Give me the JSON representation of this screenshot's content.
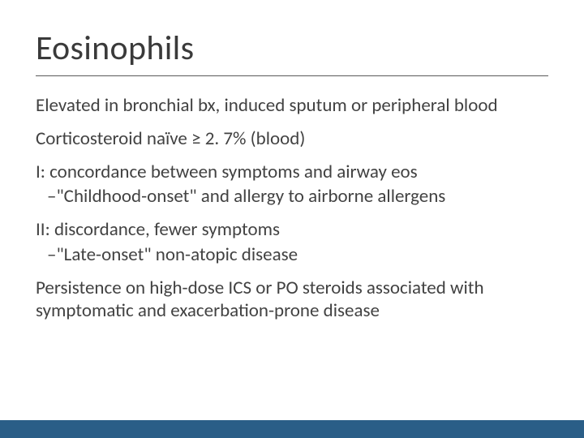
{
  "slide": {
    "title": "Eosinophils",
    "lines": {
      "p1": "Elevated in bronchial bx, induced sputum or peripheral blood",
      "p2": "Corticosteroid naïve ≥ 2. 7% (blood)",
      "p3": "I:  concordance between symptoms and airway eos",
      "p3sub": "–\"Childhood-onset\" and allergy to airborne allergens",
      "p4": "II:  discordance, fewer symptoms",
      "p4sub": "–\"Late-onset\" non-atopic disease",
      "p5": "Persistence on high-dose ICS or PO steroids associated with symptomatic and exacerbation-prone disease"
    }
  },
  "style": {
    "title_fontsize": 42,
    "body_fontsize": 23,
    "title_color": "#3a3a3a",
    "body_color": "#424242",
    "divider_color": "#5a5a5a",
    "footer_bar_color": "#2a5e87",
    "background": "#ffffff"
  }
}
